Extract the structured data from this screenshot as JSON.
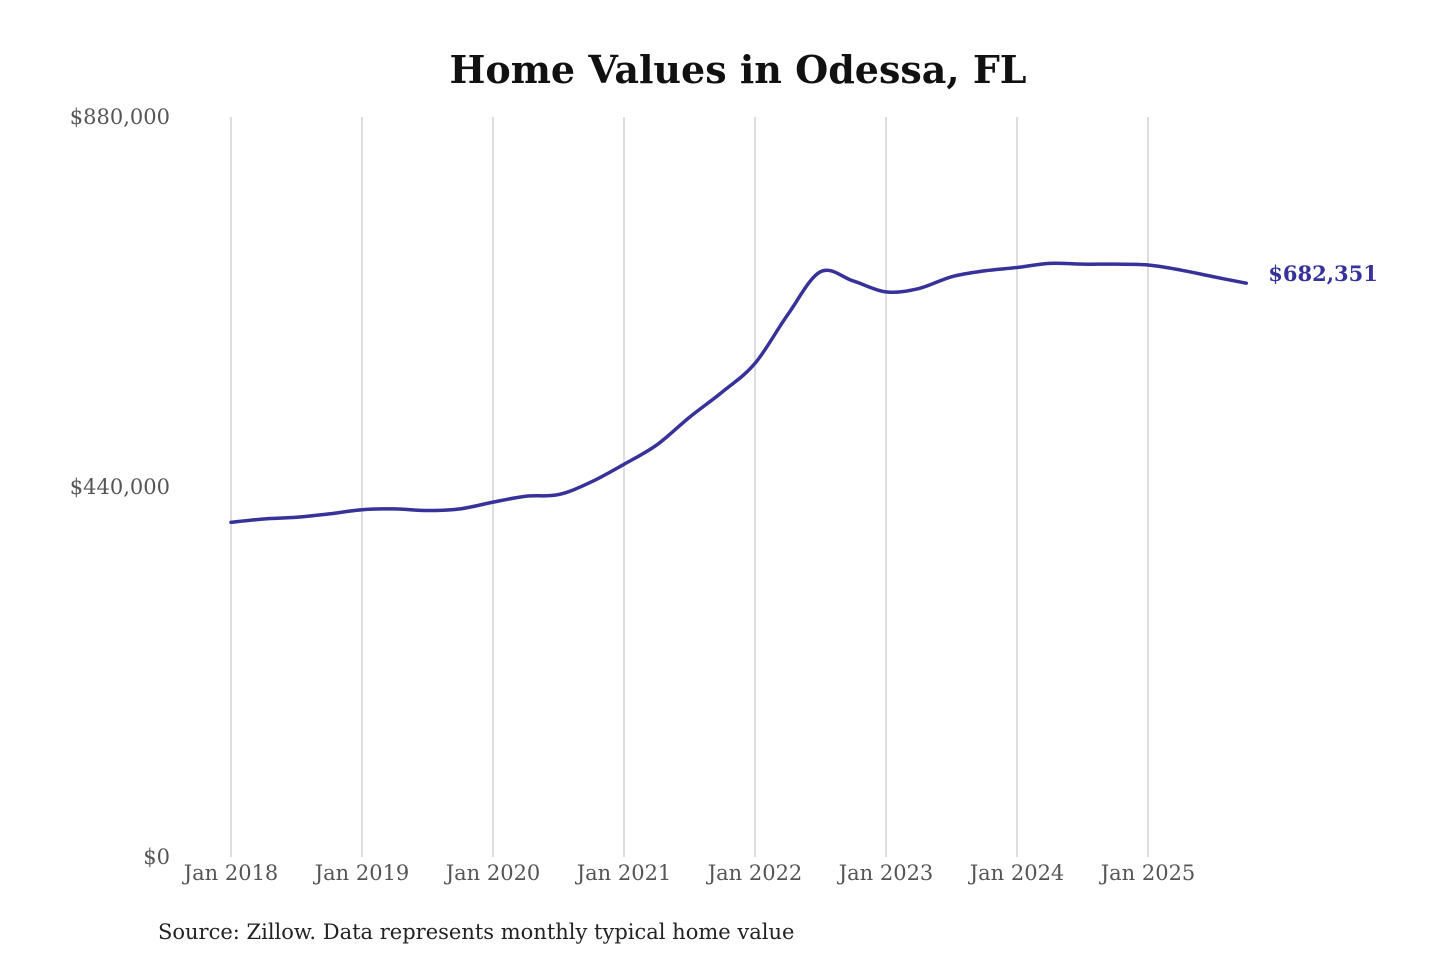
{
  "chart_data": {
    "type": "line",
    "title": "Home Values in Odessa, FL",
    "source": "Source: Zillow. Data represents monthly typical home value",
    "xlabel": "",
    "ylabel": "",
    "ylim": [
      0,
      880000
    ],
    "y_ticks": [
      0,
      440000,
      880000
    ],
    "y_tick_labels": [
      "$0",
      "$440,000",
      "$880,000"
    ],
    "x_ticks": [
      "2018-01",
      "2019-01",
      "2020-01",
      "2021-01",
      "2022-01",
      "2023-01",
      "2024-01",
      "2025-01"
    ],
    "x_tick_labels": [
      "Jan 2018",
      "Jan 2019",
      "Jan 2020",
      "Jan 2021",
      "Jan 2022",
      "Jan 2023",
      "Jan 2024",
      "Jan 2025"
    ],
    "grid": "vertical",
    "line_color": "#36329a",
    "end_label": "$682,351",
    "series": [
      {
        "x": [
          "2018-01",
          "2018-04",
          "2018-07",
          "2018-10",
          "2019-01",
          "2019-04",
          "2019-07",
          "2019-10",
          "2020-01",
          "2020-04",
          "2020-07",
          "2020-10",
          "2021-01",
          "2021-04",
          "2021-07",
          "2021-10",
          "2022-01",
          "2022-04",
          "2022-07",
          "2022-10",
          "2023-01",
          "2023-04",
          "2023-07",
          "2023-10",
          "2024-01",
          "2024-04",
          "2024-07",
          "2024-10",
          "2025-01",
          "2025-04",
          "2025-07",
          "2025-10"
        ],
        "values": [
          398000,
          402000,
          404000,
          408000,
          413000,
          414000,
          412000,
          414000,
          422000,
          429000,
          431000,
          446000,
          467000,
          490000,
          523000,
          553000,
          587000,
          645000,
          696000,
          685000,
          672000,
          676000,
          690000,
          697000,
          701000,
          706000,
          705000,
          705000,
          704000,
          698000,
          690000,
          682351
        ]
      }
    ]
  }
}
